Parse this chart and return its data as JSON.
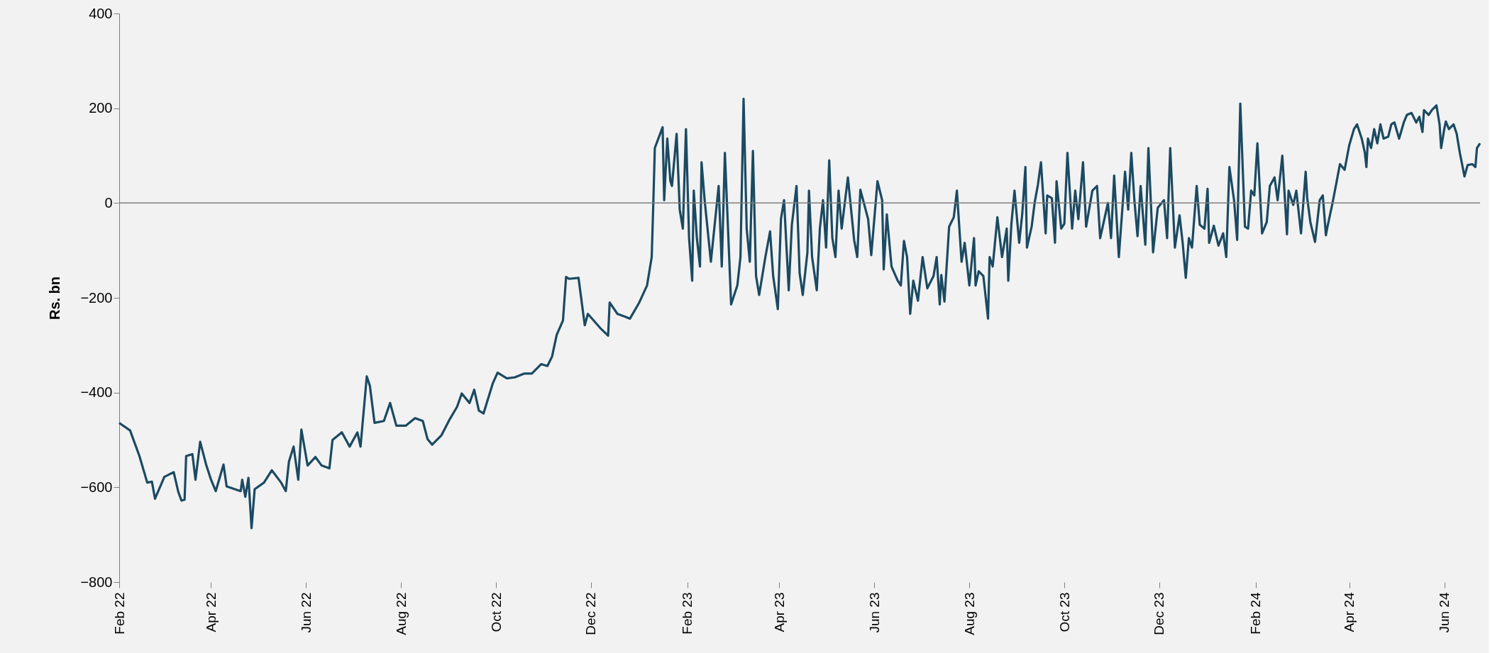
{
  "chart_data": {
    "type": "line",
    "ylabel": "Rs. bn",
    "xlim": [
      "2022-02-01",
      "2024-06-24"
    ],
    "xticks": [
      {
        "value": "2022-02-01",
        "label": "Feb 22"
      },
      {
        "value": "2022-04-01",
        "label": "Apr 22"
      },
      {
        "value": "2022-06-01",
        "label": "Jun 22"
      },
      {
        "value": "2022-08-01",
        "label": "Aug 22"
      },
      {
        "value": "2022-10-01",
        "label": "Oct 22"
      },
      {
        "value": "2022-12-01",
        "label": "Dec 22"
      },
      {
        "value": "2023-02-01",
        "label": "Feb 23"
      },
      {
        "value": "2023-04-01",
        "label": "Apr 23"
      },
      {
        "value": "2023-06-01",
        "label": "Jun 23"
      },
      {
        "value": "2023-08-01",
        "label": "Aug 23"
      },
      {
        "value": "2023-10-01",
        "label": "Oct 23"
      },
      {
        "value": "2023-12-01",
        "label": "Dec 23"
      },
      {
        "value": "2024-02-01",
        "label": "Feb 24"
      },
      {
        "value": "2024-04-01",
        "label": "Apr 24"
      },
      {
        "value": "2024-06-01",
        "label": "Jun 24"
      }
    ],
    "ylim": [
      -800,
      400
    ],
    "yticks": [
      -800,
      -600,
      -400,
      -200,
      0,
      200,
      400
    ],
    "grid": false,
    "marker": "none",
    "line_style": "solid",
    "ref_lines": [
      {
        "axis": "y",
        "value": 0,
        "color": "#7f7f7f"
      }
    ],
    "x": [
      "2022-02-01",
      "2022-02-08",
      "2022-02-14",
      "2022-02-19",
      "2022-02-22",
      "2022-02-24",
      "2022-03-02",
      "2022-03-08",
      "2022-03-11",
      "2022-03-13",
      "2022-03-15",
      "2022-03-16",
      "2022-03-20",
      "2022-03-22",
      "2022-03-25",
      "2022-03-29",
      "2022-04-01",
      "2022-04-04",
      "2022-04-09",
      "2022-04-11",
      "2022-04-20",
      "2022-04-21",
      "2022-04-23",
      "2022-04-25",
      "2022-04-27",
      "2022-04-29",
      "2022-05-05",
      "2022-05-10",
      "2022-05-16",
      "2022-05-19",
      "2022-05-21",
      "2022-05-24",
      "2022-05-27",
      "2022-05-29",
      "2022-06-02",
      "2022-06-07",
      "2022-06-11",
      "2022-06-16",
      "2022-06-18",
      "2022-06-24",
      "2022-06-29",
      "2022-07-04",
      "2022-07-06",
      "2022-07-10",
      "2022-07-12",
      "2022-07-15",
      "2022-07-21",
      "2022-07-25",
      "2022-07-29",
      "2022-08-04",
      "2022-08-10",
      "2022-08-15",
      "2022-08-18",
      "2022-08-21",
      "2022-08-27",
      "2022-09-01",
      "2022-09-06",
      "2022-09-09",
      "2022-09-14",
      "2022-09-17",
      "2022-09-20",
      "2022-09-23",
      "2022-09-29",
      "2022-10-02",
      "2022-10-08",
      "2022-10-13",
      "2022-10-19",
      "2022-10-24",
      "2022-10-30",
      "2022-11-03",
      "2022-11-06",
      "2022-11-09",
      "2022-11-13",
      "2022-11-15",
      "2022-11-17",
      "2022-11-23",
      "2022-11-27",
      "2022-11-29",
      "2022-12-07",
      "2022-12-12",
      "2022-12-13",
      "2022-12-18",
      "2022-12-23",
      "2022-12-26",
      "2023-01-01",
      "2023-01-06",
      "2023-01-09",
      "2023-01-10",
      "2023-01-11",
      "2023-01-16",
      "2023-01-17",
      "2023-01-19",
      "2023-01-21",
      "2023-01-22",
      "2023-01-25",
      "2023-01-27",
      "2023-01-29",
      "2023-01-31",
      "2023-02-02",
      "2023-02-04",
      "2023-02-05",
      "2023-02-07",
      "2023-02-09",
      "2023-02-10",
      "2023-02-12",
      "2023-02-16",
      "2023-02-21",
      "2023-02-23",
      "2023-02-25",
      "2023-03-01",
      "2023-03-05",
      "2023-03-07",
      "2023-03-09",
      "2023-03-11",
      "2023-03-13",
      "2023-03-15",
      "2023-03-17",
      "2023-03-19",
      "2023-03-23",
      "2023-03-26",
      "2023-03-28",
      "2023-03-31",
      "2023-04-02",
      "2023-04-04",
      "2023-04-07",
      "2023-04-09",
      "2023-04-12",
      "2023-04-14",
      "2023-04-16",
      "2023-04-19",
      "2023-04-20",
      "2023-04-22",
      "2023-04-25",
      "2023-04-27",
      "2023-04-29",
      "2023-05-01",
      "2023-05-03",
      "2023-05-05",
      "2023-05-07",
      "2023-05-09",
      "2023-05-11",
      "2023-05-15",
      "2023-05-19",
      "2023-05-21",
      "2023-05-23",
      "2023-05-28",
      "2023-05-30",
      "2023-06-03",
      "2023-06-06",
      "2023-06-07",
      "2023-06-09",
      "2023-06-12",
      "2023-06-16",
      "2023-06-18",
      "2023-06-20",
      "2023-06-22",
      "2023-06-24",
      "2023-06-26",
      "2023-06-29",
      "2023-07-02",
      "2023-07-05",
      "2023-07-09",
      "2023-07-11",
      "2023-07-13",
      "2023-07-14",
      "2023-07-16",
      "2023-07-19",
      "2023-07-22",
      "2023-07-24",
      "2023-07-27",
      "2023-07-29",
      "2023-08-01",
      "2023-08-04",
      "2023-08-05",
      "2023-08-07",
      "2023-08-10",
      "2023-08-13",
      "2023-08-14",
      "2023-08-16",
      "2023-08-19",
      "2023-08-22",
      "2023-08-25",
      "2023-08-26",
      "2023-08-28",
      "2023-08-30",
      "2023-09-02",
      "2023-09-04",
      "2023-09-06",
      "2023-09-07",
      "2023-09-10",
      "2023-09-12",
      "2023-09-14",
      "2023-09-16",
      "2023-09-19",
      "2023-09-20",
      "2023-09-23",
      "2023-09-25",
      "2023-09-26",
      "2023-09-29",
      "2023-10-01",
      "2023-10-03",
      "2023-10-06",
      "2023-10-08",
      "2023-10-10",
      "2023-10-13",
      "2023-10-15",
      "2023-10-19",
      "2023-10-22",
      "2023-10-24",
      "2023-10-29",
      "2023-10-31",
      "2023-11-02",
      "2023-11-05",
      "2023-11-09",
      "2023-11-11",
      "2023-11-13",
      "2023-11-15",
      "2023-11-17",
      "2023-11-19",
      "2023-11-22",
      "2023-11-24",
      "2023-11-27",
      "2023-11-30",
      "2023-12-04",
      "2023-12-06",
      "2023-12-08",
      "2023-12-11",
      "2023-12-14",
      "2023-12-16",
      "2023-12-18",
      "2023-12-20",
      "2023-12-22",
      "2023-12-25",
      "2023-12-27",
      "2023-12-30",
      "2024-01-01",
      "2024-01-02",
      "2024-01-05",
      "2024-01-08",
      "2024-01-11",
      "2024-01-13",
      "2024-01-15",
      "2024-01-18",
      "2024-01-20",
      "2024-01-22",
      "2024-01-25",
      "2024-01-27",
      "2024-01-29",
      "2024-01-31",
      "2024-02-02",
      "2024-02-05",
      "2024-02-08",
      "2024-02-10",
      "2024-02-13",
      "2024-02-15",
      "2024-02-18",
      "2024-02-21",
      "2024-02-22",
      "2024-02-25",
      "2024-02-27",
      "2024-03-01",
      "2024-03-04",
      "2024-03-05",
      "2024-03-07",
      "2024-03-10",
      "2024-03-13",
      "2024-03-15",
      "2024-03-17",
      "2024-03-18",
      "2024-03-21",
      "2024-03-23",
      "2024-03-26",
      "2024-03-29",
      "2024-04-01",
      "2024-04-04",
      "2024-04-06",
      "2024-04-09",
      "2024-04-11",
      "2024-04-12",
      "2024-04-13",
      "2024-04-15",
      "2024-04-17",
      "2024-04-19",
      "2024-04-21",
      "2024-04-23",
      "2024-04-26",
      "2024-04-28",
      "2024-04-30",
      "2024-05-03",
      "2024-05-06",
      "2024-05-08",
      "2024-05-11",
      "2024-05-14",
      "2024-05-16",
      "2024-05-18",
      "2024-05-19",
      "2024-05-22",
      "2024-05-24",
      "2024-05-27",
      "2024-05-29",
      "2024-05-30",
      "2024-06-01",
      "2024-06-02",
      "2024-06-04",
      "2024-06-07",
      "2024-06-09",
      "2024-06-11",
      "2024-06-14",
      "2024-06-16",
      "2024-06-19",
      "2024-06-21",
      "2024-06-22",
      "2024-06-24"
    ],
    "series": [
      {
        "color": "#1b4a62",
        "values": [
          -464,
          -480,
          -534,
          -590,
          -588,
          -624,
          -578,
          -568,
          -610,
          -628,
          -626,
          -534,
          -530,
          -584,
          -504,
          -554,
          -584,
          -608,
          -552,
          -598,
          -608,
          -584,
          -620,
          -580,
          -686,
          -604,
          -590,
          -564,
          -590,
          -608,
          -546,
          -514,
          -584,
          -478,
          -554,
          -536,
          -554,
          -560,
          -500,
          -484,
          -514,
          -484,
          -514,
          -366,
          -386,
          -464,
          -460,
          -422,
          -470,
          -470,
          -454,
          -460,
          -498,
          -510,
          -490,
          -458,
          -430,
          -402,
          -422,
          -394,
          -438,
          -444,
          -380,
          -358,
          -370,
          -368,
          -360,
          -360,
          -340,
          -344,
          -324,
          -278,
          -248,
          -156,
          -160,
          -158,
          -258,
          -234,
          -264,
          -280,
          -210,
          -234,
          -240,
          -244,
          -210,
          -174,
          -114,
          -4,
          116,
          160,
          6,
          136,
          46,
          36,
          146,
          -14,
          -54,
          156,
          -74,
          -164,
          26,
          -74,
          -134,
          86,
          6,
          -124,
          36,
          -134,
          106,
          -214,
          -174,
          -114,
          220,
          -54,
          -124,
          110,
          -154,
          -194,
          -114,
          -60,
          -154,
          -224,
          -34,
          6,
          -184,
          -46,
          36,
          -148,
          -194,
          -104,
          26,
          -114,
          -184,
          -54,
          6,
          -94,
          90,
          -74,
          -114,
          26,
          -54,
          54,
          -78,
          -114,
          28,
          -34,
          -110,
          46,
          6,
          -140,
          -24,
          -134,
          -164,
          -174,
          -80,
          -114,
          -234,
          -164,
          -206,
          -114,
          -180,
          -154,
          -114,
          -214,
          -152,
          -208,
          -50,
          -30,
          26,
          -124,
          -84,
          -174,
          -74,
          -174,
          -144,
          -154,
          -244,
          -114,
          -134,
          -30,
          -114,
          -54,
          -164,
          -44,
          26,
          -84,
          -22,
          76,
          -94,
          -50,
          2,
          38,
          86,
          -64,
          16,
          10,
          -84,
          46,
          -54,
          -44,
          106,
          -54,
          26,
          -34,
          86,
          -50,
          26,
          36,
          -74,
          0,
          -74,
          58,
          -114,
          66,
          -14,
          106,
          6,
          -70,
          36,
          -88,
          116,
          -104,
          -10,
          6,
          -74,
          116,
          -94,
          -26,
          -84,
          -158,
          -74,
          -94,
          36,
          -46,
          -54,
          30,
          -84,
          -48,
          -90,
          -64,
          -114,
          76,
          6,
          -78,
          210,
          -50,
          -54,
          26,
          16,
          126,
          -64,
          -40,
          36,
          54,
          6,
          100,
          -66,
          26,
          -4,
          26,
          -64,
          66,
          10,
          -40,
          -82,
          6,
          16,
          -68,
          -50,
          -4,
          30,
          82,
          70,
          122,
          156,
          166,
          136,
          106,
          76,
          136,
          116,
          156,
          126,
          166,
          136,
          140,
          166,
          170,
          136,
          170,
          186,
          190,
          170,
          182,
          150,
          196,
          186,
          196,
          206,
          166,
          116,
          156,
          172,
          156,
          166,
          146,
          106,
          56,
          80,
          82,
          76,
          116,
          126
        ]
      }
    ]
  }
}
